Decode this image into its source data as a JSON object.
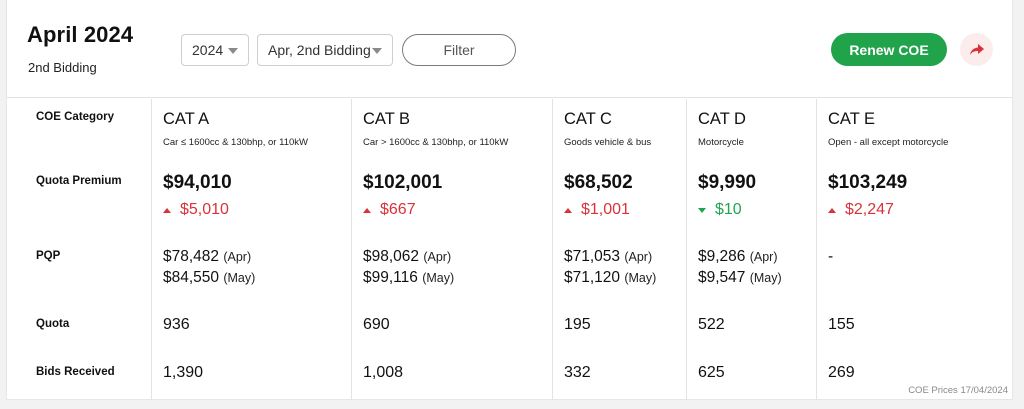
{
  "header": {
    "title": "April 2024",
    "subtitle": "2nd Bidding",
    "year_select": "2024",
    "round_select": "Apr, 2nd Bidding",
    "filter_label": "Filter",
    "renew_label": "Renew COE",
    "share_icon": "share-arrow-icon",
    "accent_green": "#20a34a",
    "accent_red": "#d9323a"
  },
  "row_labels": {
    "category": "COE Category",
    "premium": "Quota Premium",
    "pqp": "PQP",
    "quota": "Quota",
    "bids": "Bids Received"
  },
  "categories": [
    {
      "name": "CAT A",
      "desc": "Car ≤ 1600cc & 130bhp, or 110kW",
      "premium": "$94,010",
      "change": "$5,010",
      "direction": "up",
      "pqp1": "$78,482",
      "pqp1_month": "(Apr)",
      "pqp2": "$84,550",
      "pqp2_month": "(May)",
      "quota": "936",
      "bids": "1,390"
    },
    {
      "name": "CAT B",
      "desc": "Car > 1600cc & 130bhp, or 110kW",
      "premium": "$102,001",
      "change": "$667",
      "direction": "up",
      "pqp1": "$98,062",
      "pqp1_month": "(Apr)",
      "pqp2": "$99,116",
      "pqp2_month": "(May)",
      "quota": "690",
      "bids": "1,008"
    },
    {
      "name": "CAT C",
      "desc": "Goods vehicle & bus",
      "premium": "$68,502",
      "change": "$1,001",
      "direction": "up",
      "pqp1": "$71,053",
      "pqp1_month": "(Apr)",
      "pqp2": "$71,120",
      "pqp2_month": "(May)",
      "quota": "195",
      "bids": "332"
    },
    {
      "name": "CAT D",
      "desc": "Motorcycle",
      "premium": "$9,990",
      "change": "$10",
      "direction": "down",
      "pqp1": "$9,286",
      "pqp1_month": "(Apr)",
      "pqp2": "$9,547",
      "pqp2_month": "(May)",
      "quota": "522",
      "bids": "625"
    },
    {
      "name": "CAT E",
      "desc": "Open - all except motorcycle",
      "premium": "$103,249",
      "change": "$2,247",
      "direction": "up",
      "pqp1": "-",
      "pqp1_month": "",
      "pqp2": "",
      "pqp2_month": "",
      "quota": "155",
      "bids": "269"
    }
  ],
  "footer": "COE Prices 17/04/2024"
}
